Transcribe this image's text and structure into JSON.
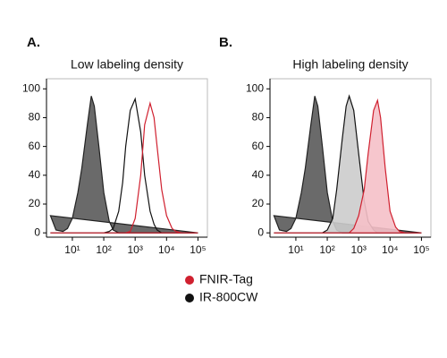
{
  "chart_data": [
    {
      "type": "area",
      "title": "A.",
      "subtitle": "Low labeling density",
      "x": [
        2,
        3,
        5,
        7,
        10,
        15,
        20,
        30,
        40,
        50,
        70,
        100,
        150,
        200,
        300,
        400,
        500,
        700,
        1000,
        1500,
        2000,
        3000,
        4000,
        5000,
        7000,
        10000,
        15000,
        20000,
        30000,
        50000,
        100000
      ],
      "log_x": true,
      "xlim": [
        1.5,
        200000
      ],
      "ylim": [
        -3,
        107
      ],
      "xticks": [
        {
          "value": 10,
          "label": "10¹"
        },
        {
          "value": 100,
          "label": "10²"
        },
        {
          "value": 1000,
          "label": "10³"
        },
        {
          "value": 10000,
          "label": "10⁴"
        },
        {
          "value": 100000,
          "label": "10⁵"
        }
      ],
      "yticks": [
        0,
        20,
        40,
        60,
        80,
        100
      ],
      "series": [
        {
          "color": "#222222",
          "fill": "#5a5a5a",
          "values": [
            12,
            2,
            1,
            3,
            10,
            28,
            45,
            75,
            95,
            88,
            60,
            28,
            8,
            2,
            0,
            0,
            0,
            0,
            0,
            0,
            0,
            0,
            0,
            0,
            0,
            0,
            0,
            0,
            0,
            0,
            0
          ]
        },
        {
          "name": "IR-800CW",
          "color": "#111111",
          "fill": "none",
          "values": [
            0,
            0,
            0,
            0,
            0,
            0,
            0,
            0,
            0,
            0,
            0,
            0,
            1,
            3,
            15,
            35,
            60,
            85,
            93,
            70,
            40,
            15,
            6,
            2,
            0,
            0,
            0,
            0,
            0,
            0,
            0
          ]
        },
        {
          "name": "FNIR-Tag",
          "color": "#d0202f",
          "fill": "none",
          "values": [
            0,
            0,
            0,
            0,
            0,
            0,
            0,
            0,
            0,
            0,
            0,
            0,
            0,
            0,
            0,
            0,
            0,
            1,
            10,
            40,
            75,
            90,
            80,
            60,
            30,
            12,
            3,
            1,
            0,
            0,
            0
          ]
        }
      ]
    },
    {
      "type": "area",
      "title": "B.",
      "subtitle": "High labeling density",
      "x": [
        2,
        3,
        5,
        7,
        10,
        15,
        20,
        30,
        40,
        50,
        70,
        100,
        150,
        200,
        300,
        400,
        500,
        700,
        1000,
        1500,
        2000,
        3000,
        4000,
        5000,
        7000,
        10000,
        15000,
        20000,
        30000,
        50000,
        100000
      ],
      "log_x": true,
      "xlim": [
        1.5,
        200000
      ],
      "ylim": [
        -3,
        107
      ],
      "xticks": [
        {
          "value": 10,
          "label": "10¹"
        },
        {
          "value": 100,
          "label": "10²"
        },
        {
          "value": 1000,
          "label": "10³"
        },
        {
          "value": 10000,
          "label": "10⁴"
        },
        {
          "value": 100000,
          "label": "10⁵"
        }
      ],
      "yticks": [
        0,
        20,
        40,
        60,
        80,
        100
      ],
      "series": [
        {
          "color": "#222222",
          "fill": "#5a5a5a",
          "values": [
            12,
            2,
            1,
            3,
            10,
            28,
            45,
            75,
            95,
            88,
            60,
            28,
            8,
            2,
            0,
            0,
            0,
            0,
            0,
            0,
            0,
            0,
            0,
            0,
            0,
            0,
            0,
            0,
            0,
            0,
            0
          ]
        },
        {
          "color": "#111111",
          "fill": "#cccccc",
          "values": [
            0,
            0,
            0,
            0,
            0,
            0,
            0,
            0,
            0,
            0,
            0,
            2,
            10,
            30,
            65,
            88,
            95,
            85,
            55,
            22,
            8,
            2,
            0,
            0,
            0,
            0,
            0,
            0,
            0,
            0,
            0
          ]
        },
        {
          "color": "#d0202f",
          "fill": "#f5c0c8",
          "values": [
            0,
            0,
            0,
            0,
            0,
            0,
            0,
            0,
            0,
            0,
            0,
            0,
            0,
            0,
            0,
            0,
            0,
            3,
            12,
            30,
            55,
            85,
            92,
            80,
            45,
            15,
            4,
            1,
            0,
            0,
            0
          ]
        }
      ]
    }
  ]
}
